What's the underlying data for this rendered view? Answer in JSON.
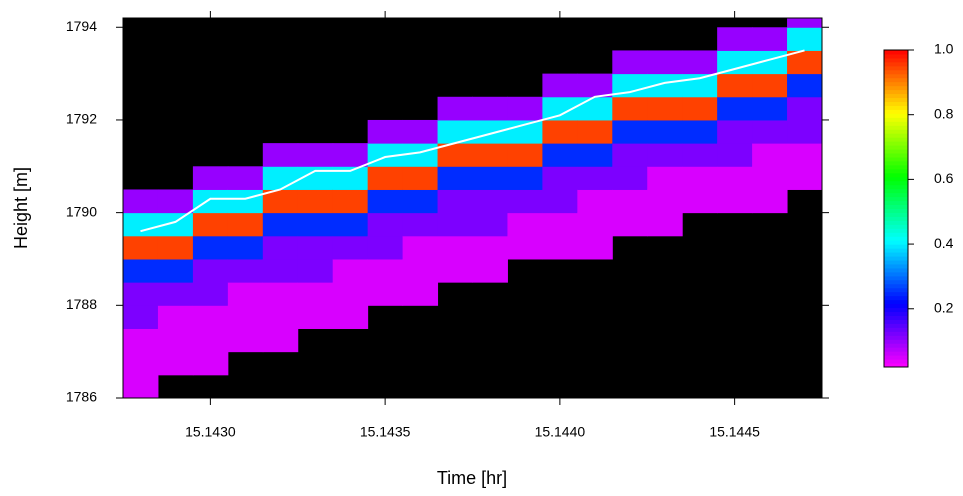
{
  "chart_data": {
    "type": "heatmap",
    "xlabel": "Time [hr]",
    "ylabel": "Height [m]",
    "xlim": [
      15.14275,
      15.14475
    ],
    "ylim": [
      1786,
      1794.2
    ],
    "xticks": [
      {
        "value": 15.143,
        "label": "15.1430"
      },
      {
        "value": 15.1435,
        "label": "15.1435"
      },
      {
        "value": 15.144,
        "label": "15.1440"
      },
      {
        "value": 15.1445,
        "label": "15.1445"
      }
    ],
    "yticks": [
      1786,
      1788,
      1790,
      1792,
      1794
    ],
    "zlim": [
      0.02,
      1
    ],
    "zticks": [
      0.2,
      0.4,
      0.6,
      0.8,
      {
        "value": 1,
        "label": "1.0"
      }
    ],
    "colormap": "rainbow",
    "na_color": "#000000",
    "x_bins": [
      15.14275,
      15.14285,
      15.14295,
      15.14305,
      15.14315,
      15.14325,
      15.14335,
      15.14345,
      15.14355,
      15.14365,
      15.14375,
      15.14385,
      15.14395,
      15.14405,
      15.14415,
      15.14425,
      15.14435,
      15.14445,
      15.14455,
      15.14465,
      15.14475
    ],
    "y_bins": [
      1786,
      1786.5,
      1787,
      1787.5,
      1788,
      1788.5,
      1789,
      1789.5,
      1790,
      1790.5,
      1791,
      1791.5,
      1792,
      1792.5,
      1793,
      1793.5,
      1794,
      1794.5
    ],
    "z": [
      [
        0.05,
        0.05,
        0.05,
        0.12,
        0.12,
        0.25,
        0.95,
        0.4,
        0.1,
        null,
        null,
        null,
        null,
        null,
        null,
        null,
        null
      ],
      [
        null,
        0.05,
        0.05,
        0.05,
        0.12,
        0.25,
        0.95,
        0.4,
        0.1,
        null,
        null,
        null,
        null,
        null,
        null,
        null,
        null
      ],
      [
        null,
        0.05,
        0.05,
        0.05,
        0.12,
        0.12,
        0.25,
        0.95,
        0.4,
        0.1,
        null,
        null,
        null,
        null,
        null,
        null,
        null
      ],
      [
        null,
        null,
        0.05,
        0.05,
        0.05,
        0.12,
        0.25,
        0.95,
        0.4,
        0.1,
        null,
        null,
        null,
        null,
        null,
        null,
        null
      ],
      [
        null,
        null,
        0.05,
        0.05,
        0.05,
        0.12,
        0.12,
        0.25,
        0.95,
        0.4,
        0.1,
        null,
        null,
        null,
        null,
        null,
        null
      ],
      [
        null,
        null,
        null,
        0.05,
        0.05,
        0.12,
        0.12,
        0.25,
        0.95,
        0.4,
        0.1,
        null,
        null,
        null,
        null,
        null,
        null
      ],
      [
        null,
        null,
        null,
        0.05,
        0.05,
        0.05,
        0.12,
        0.25,
        0.95,
        0.4,
        0.1,
        null,
        null,
        null,
        null,
        null,
        null
      ],
      [
        null,
        null,
        null,
        null,
        0.05,
        0.05,
        0.12,
        0.12,
        0.25,
        0.95,
        0.4,
        0.1,
        null,
        null,
        null,
        null,
        null
      ],
      [
        null,
        null,
        null,
        null,
        0.05,
        0.05,
        0.05,
        0.12,
        0.25,
        0.95,
        0.4,
        0.1,
        null,
        null,
        null,
        null,
        null
      ],
      [
        null,
        null,
        null,
        null,
        null,
        0.05,
        0.05,
        0.12,
        0.12,
        0.25,
        0.95,
        0.4,
        0.1,
        null,
        null,
        null,
        null
      ],
      [
        null,
        null,
        null,
        null,
        null,
        0.05,
        0.05,
        0.12,
        0.12,
        0.25,
        0.95,
        0.4,
        0.1,
        null,
        null,
        null,
        null
      ],
      [
        null,
        null,
        null,
        null,
        null,
        null,
        0.05,
        0.05,
        0.12,
        0.25,
        0.95,
        0.4,
        0.1,
        null,
        null,
        null,
        null
      ],
      [
        null,
        null,
        null,
        null,
        null,
        null,
        0.05,
        0.05,
        0.12,
        0.12,
        0.25,
        0.95,
        0.4,
        0.1,
        null,
        null,
        null
      ],
      [
        null,
        null,
        null,
        null,
        null,
        null,
        0.05,
        0.05,
        0.05,
        0.12,
        0.25,
        0.95,
        0.4,
        0.1,
        null,
        null,
        null
      ],
      [
        null,
        null,
        null,
        null,
        null,
        null,
        null,
        0.05,
        0.05,
        0.12,
        0.12,
        0.25,
        0.95,
        0.4,
        0.1,
        null,
        null
      ],
      [
        null,
        null,
        null,
        null,
        null,
        null,
        null,
        0.05,
        0.05,
        0.05,
        0.12,
        0.25,
        0.95,
        0.4,
        0.1,
        null,
        null
      ],
      [
        null,
        null,
        null,
        null,
        null,
        null,
        null,
        null,
        0.05,
        0.05,
        0.12,
        0.25,
        0.95,
        0.4,
        0.1,
        null,
        null
      ],
      [
        null,
        null,
        null,
        null,
        null,
        null,
        null,
        null,
        0.05,
        0.05,
        0.12,
        0.12,
        0.25,
        0.95,
        0.4,
        0.1,
        null
      ],
      [
        null,
        null,
        null,
        null,
        null,
        null,
        null,
        null,
        0.05,
        0.05,
        0.05,
        0.12,
        0.25,
        0.95,
        0.4,
        0.1,
        null
      ],
      [
        null,
        null,
        null,
        null,
        null,
        null,
        null,
        null,
        null,
        0.05,
        0.05,
        0.12,
        0.12,
        0.25,
        0.95,
        0.4,
        0.1
      ]
    ],
    "series": [
      {
        "color": "#ffffff",
        "x": [
          15.1428,
          15.1429,
          15.143,
          15.1431,
          15.1432,
          15.1433,
          15.1434,
          15.1435,
          15.1436,
          15.1437,
          15.1438,
          15.1439,
          15.144,
          15.1441,
          15.1442,
          15.1443,
          15.1444,
          15.1445,
          15.1446,
          15.1447
        ],
        "values": [
          1789.6,
          1789.8,
          1790.3,
          1790.3,
          1790.5,
          1790.9,
          1790.9,
          1791.2,
          1791.3,
          1791.5,
          1791.7,
          1791.9,
          1792.1,
          1792.5,
          1792.6,
          1792.8,
          1792.9,
          1793.1,
          1793.3,
          1793.5
        ]
      }
    ]
  }
}
